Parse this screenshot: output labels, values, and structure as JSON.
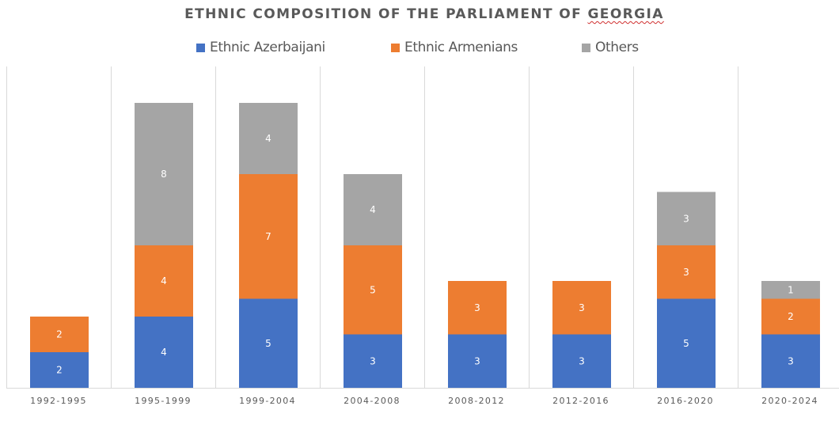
{
  "chart_data": {
    "type": "bar",
    "stacked": true,
    "title": "ETHNIC COMPOSITION OF THE PARLIAMENT OF GEORGIA",
    "title_main": "ETHNIC COMPOSITION OF THE PARLIAMENT OF ",
    "title_flagged": "GEORGIA",
    "xlabel": "",
    "ylabel": "",
    "ylim": [
      0,
      18
    ],
    "grid": "vertical category dividers",
    "legend_position": "top",
    "categories": [
      "1992-1995",
      "1995-1999",
      "1999-2004",
      "2004-2008",
      "2008-2012",
      "2012-2016",
      "2016-2020",
      "2020-2024"
    ],
    "series": [
      {
        "name": "Ethnic Azerbaijani",
        "color": "#4472c4",
        "values": [
          2,
          4,
          5,
          3,
          3,
          3,
          5,
          3
        ]
      },
      {
        "name": "Ethnic Armenians",
        "color": "#ed7d31",
        "values": [
          2,
          4,
          7,
          5,
          3,
          3,
          3,
          2
        ]
      },
      {
        "name": "Others",
        "color": "#a5a5a5",
        "values": [
          0,
          8,
          4,
          4,
          0,
          0,
          3,
          1
        ]
      }
    ]
  }
}
